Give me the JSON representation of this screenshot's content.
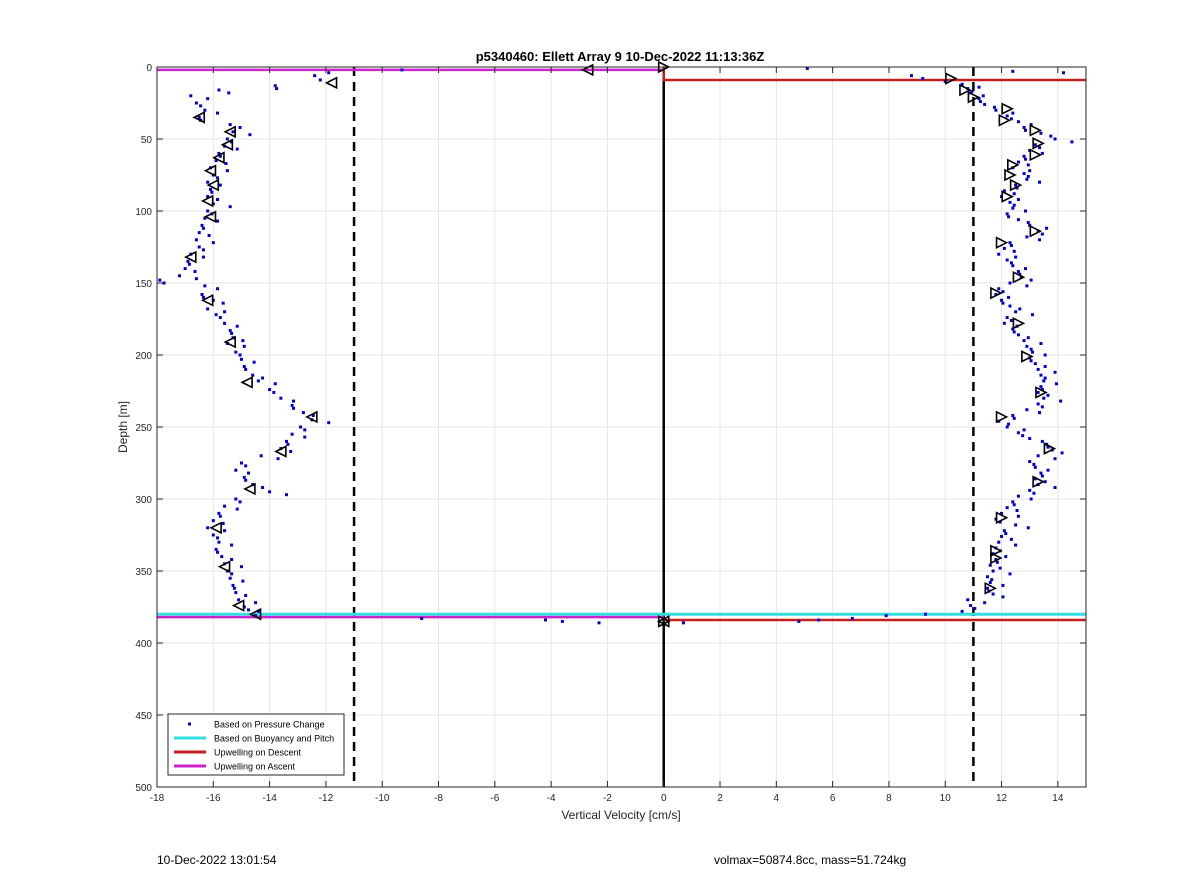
{
  "footer": {
    "timestamp": "10-Dec-2022 13:01:54",
    "info": "volmax=50874.8cc, mass=51.724kg"
  },
  "chart_data": {
    "type": "scatter",
    "title": "p5340460: Ellett Array 9 10-Dec-2022 11:13:36Z",
    "xlabel": "Vertical Velocity [cm/s]",
    "ylabel": "Depth [m]",
    "xlim": [
      -18,
      15
    ],
    "ylim": [
      0,
      500
    ],
    "y_reversed": true,
    "grid": true,
    "xticks": [
      -18,
      -16,
      -14,
      -12,
      -10,
      -8,
      -6,
      -4,
      -2,
      0,
      2,
      4,
      6,
      8,
      10,
      12,
      14
    ],
    "yticks": [
      0,
      50,
      100,
      150,
      200,
      250,
      300,
      350,
      400,
      450,
      500
    ],
    "legend": {
      "placement": "bottom-left",
      "entries": [
        {
          "label": "Based on Pressure Change",
          "color": "#0000cc",
          "style": "dot"
        },
        {
          "label": "Based on Buoyancy and Pitch",
          "color": "#33dde0",
          "style": "line"
        },
        {
          "label": "Upwelling on Descent",
          "color": "#c41e1e",
          "style": "line"
        },
        {
          "label": "Upwelling on Ascent",
          "color": "#cc22cc",
          "style": "line"
        }
      ]
    },
    "colors": {
      "pressure": "#0000cc",
      "buoyancy": "#33dde0",
      "descent": "#c41e1e",
      "ascent": "#cc22cc",
      "reference": "#000000",
      "grid": "#e6e6e6"
    },
    "reference_lines": {
      "zero_x": 0,
      "dashed_x": [
        -11,
        11
      ]
    },
    "series": [
      {
        "name": "Based on Pressure Change",
        "kind": "markers",
        "ascent_profile": [
          [
            2,
            -9.3
          ],
          [
            4,
            -11.9
          ],
          [
            6,
            -12.4
          ],
          [
            9,
            -12.2
          ],
          [
            13,
            -13.8
          ],
          [
            16,
            -15.8
          ],
          [
            20,
            -16.8
          ],
          [
            25,
            -16.6
          ],
          [
            30,
            -16.3
          ],
          [
            35,
            -16.5
          ],
          [
            40,
            -15.4
          ],
          [
            45,
            -15.3
          ],
          [
            50,
            -15.5
          ],
          [
            55,
            -15.6
          ],
          [
            60,
            -15.8
          ],
          [
            65,
            -15.9
          ],
          [
            70,
            -16.1
          ],
          [
            75,
            -16.0
          ],
          [
            80,
            -16.2
          ],
          [
            85,
            -16.1
          ],
          [
            90,
            -16.2
          ],
          [
            95,
            -16.0
          ],
          [
            100,
            -16.2
          ],
          [
            105,
            -16.3
          ],
          [
            110,
            -16.4
          ],
          [
            115,
            -16.5
          ],
          [
            120,
            -16.6
          ],
          [
            125,
            -16.5
          ],
          [
            130,
            -16.8
          ],
          [
            135,
            -16.9
          ],
          [
            140,
            -17.0
          ],
          [
            145,
            -17.2
          ],
          [
            148,
            -17.9
          ],
          [
            152,
            -16.3
          ],
          [
            158,
            -16.4
          ],
          [
            162,
            -16.0
          ],
          [
            168,
            -16.2
          ],
          [
            172,
            -15.9
          ],
          [
            178,
            -15.6
          ],
          [
            183,
            -15.4
          ],
          [
            188,
            -15.3
          ],
          [
            192,
            -15.5
          ],
          [
            198,
            -15.2
          ],
          [
            203,
            -15.0
          ],
          [
            208,
            -14.9
          ],
          [
            214,
            -14.6
          ],
          [
            218,
            -14.4
          ],
          [
            224,
            -14.0
          ],
          [
            230,
            -13.6
          ],
          [
            235,
            -13.2
          ],
          [
            240,
            -12.8
          ],
          [
            245,
            -12.5
          ],
          [
            250,
            -12.9
          ],
          [
            255,
            -13.2
          ],
          [
            260,
            -13.4
          ],
          [
            265,
            -13.6
          ],
          [
            270,
            -14.3
          ],
          [
            275,
            -15.0
          ],
          [
            280,
            -15.2
          ],
          [
            285,
            -14.9
          ],
          [
            290,
            -14.6
          ],
          [
            295,
            -14.0
          ],
          [
            300,
            -15.2
          ],
          [
            305,
            -15.6
          ],
          [
            310,
            -15.8
          ],
          [
            315,
            -16.0
          ],
          [
            320,
            -16.2
          ],
          [
            325,
            -16.0
          ],
          [
            330,
            -15.8
          ],
          [
            335,
            -15.9
          ],
          [
            340,
            -15.7
          ],
          [
            345,
            -15.6
          ],
          [
            350,
            -15.5
          ],
          [
            355,
            -15.4
          ],
          [
            360,
            -15.3
          ],
          [
            365,
            -15.2
          ],
          [
            370,
            -15.1
          ],
          [
            375,
            -14.9
          ],
          [
            378,
            -14.4
          ],
          [
            381,
            -14.5
          ],
          [
            383,
            -8.6
          ],
          [
            384,
            -4.2
          ],
          [
            385,
            -3.6
          ],
          [
            386,
            -2.3
          ]
        ],
        "descent_profile": [
          [
            1,
            5.1
          ],
          [
            3,
            12.4
          ],
          [
            4,
            14.2
          ],
          [
            6,
            8.8
          ],
          [
            8,
            9.2
          ],
          [
            10,
            10.0
          ],
          [
            12,
            10.6
          ],
          [
            15,
            10.8
          ],
          [
            18,
            10.9
          ],
          [
            22,
            11.2
          ],
          [
            26,
            11.4
          ],
          [
            30,
            11.8
          ],
          [
            34,
            12.2
          ],
          [
            38,
            12.6
          ],
          [
            42,
            12.8
          ],
          [
            46,
            13.4
          ],
          [
            50,
            13.9
          ],
          [
            54,
            13.2
          ],
          [
            58,
            13.0
          ],
          [
            62,
            12.8
          ],
          [
            66,
            12.6
          ],
          [
            70,
            12.4
          ],
          [
            74,
            12.8
          ],
          [
            78,
            12.9
          ],
          [
            82,
            12.5
          ],
          [
            86,
            12.1
          ],
          [
            90,
            12.0
          ],
          [
            94,
            12.3
          ],
          [
            98,
            12.4
          ],
          [
            102,
            12.2
          ],
          [
            106,
            12.6
          ],
          [
            110,
            13.0
          ],
          [
            114,
            13.3
          ],
          [
            118,
            12.9
          ],
          [
            122,
            12.3
          ],
          [
            126,
            12.1
          ],
          [
            130,
            11.9
          ],
          [
            134,
            12.2
          ],
          [
            138,
            12.4
          ],
          [
            142,
            12.6
          ],
          [
            146,
            12.7
          ],
          [
            150,
            12.3
          ],
          [
            154,
            11.9
          ],
          [
            158,
            11.8
          ],
          [
            162,
            12.0
          ],
          [
            166,
            12.3
          ],
          [
            170,
            12.5
          ],
          [
            174,
            12.2
          ],
          [
            178,
            12.1
          ],
          [
            182,
            12.4
          ],
          [
            186,
            12.6
          ],
          [
            190,
            12.8
          ],
          [
            194,
            12.9
          ],
          [
            198,
            13.1
          ],
          [
            202,
            13.0
          ],
          [
            206,
            13.2
          ],
          [
            210,
            13.3
          ],
          [
            214,
            13.4
          ],
          [
            218,
            13.5
          ],
          [
            222,
            13.4
          ],
          [
            226,
            13.3
          ],
          [
            230,
            13.5
          ],
          [
            234,
            13.3
          ],
          [
            238,
            12.9
          ],
          [
            242,
            12.4
          ],
          [
            246,
            11.9
          ],
          [
            250,
            12.2
          ],
          [
            254,
            12.6
          ],
          [
            258,
            13.0
          ],
          [
            262,
            13.6
          ],
          [
            266,
            13.8
          ],
          [
            270,
            13.3
          ],
          [
            274,
            13.0
          ],
          [
            278,
            13.2
          ],
          [
            282,
            13.4
          ],
          [
            286,
            13.2
          ],
          [
            290,
            13.3
          ],
          [
            294,
            13.0
          ],
          [
            298,
            12.6
          ],
          [
            302,
            12.4
          ],
          [
            306,
            12.2
          ],
          [
            310,
            12.0
          ],
          [
            314,
            11.8
          ],
          [
            318,
            12.5
          ],
          [
            322,
            12.1
          ],
          [
            326,
            12.0
          ],
          [
            330,
            11.9
          ],
          [
            334,
            11.8
          ],
          [
            338,
            11.7
          ],
          [
            342,
            11.8
          ],
          [
            346,
            11.6
          ],
          [
            350,
            11.7
          ],
          [
            354,
            11.5
          ],
          [
            358,
            11.6
          ],
          [
            362,
            11.5
          ],
          [
            366,
            11.7
          ],
          [
            370,
            10.8
          ],
          [
            374,
            10.9
          ],
          [
            378,
            10.6
          ],
          [
            380,
            9.3
          ],
          [
            381,
            7.9
          ],
          [
            383,
            6.7
          ],
          [
            384,
            5.5
          ],
          [
            385,
            4.8
          ],
          [
            386,
            0.7
          ]
        ]
      },
      {
        "name": "Based on Buoyancy and Pitch",
        "kind": "line",
        "y": 380,
        "x_range": [
          -18,
          15
        ]
      },
      {
        "name": "Upwelling on Descent",
        "kind": "step",
        "points": [
          [
            0,
            0
          ],
          [
            0,
            9
          ],
          [
            15,
            9
          ],
          [
            0,
            384
          ],
          [
            15,
            384
          ]
        ]
      },
      {
        "name": "Upwelling on Ascent",
        "kind": "step",
        "points": [
          [
            -18,
            2
          ],
          [
            0,
            2
          ],
          [
            -18,
            382
          ],
          [
            0,
            382
          ]
        ]
      }
    ],
    "triangle_markers": {
      "ascent": [
        [
          2,
          -2.7
        ],
        [
          11,
          -11.8
        ],
        [
          35,
          -16.5
        ],
        [
          45,
          -15.4
        ],
        [
          54,
          -15.5
        ],
        [
          63,
          -15.8
        ],
        [
          72,
          -16.1
        ],
        [
          82,
          -16.0
        ],
        [
          93,
          -16.2
        ],
        [
          104,
          -16.1
        ],
        [
          132,
          -16.8
        ],
        [
          162,
          -16.2
        ],
        [
          191,
          -15.4
        ],
        [
          219,
          -14.8
        ],
        [
          243,
          -12.5
        ],
        [
          267,
          -13.6
        ],
        [
          293,
          -14.7
        ],
        [
          320,
          -15.9
        ],
        [
          347,
          -15.6
        ],
        [
          374,
          -15.1
        ],
        [
          380,
          -14.5
        ],
        [
          385,
          0
        ]
      ],
      "descent": [
        [
          0,
          0
        ],
        [
          8,
          10.2
        ],
        [
          16,
          10.7
        ],
        [
          21,
          11.0
        ],
        [
          29,
          12.2
        ],
        [
          37,
          12.1
        ],
        [
          44,
          13.2
        ],
        [
          53,
          13.3
        ],
        [
          61,
          13.2
        ],
        [
          68,
          12.4
        ],
        [
          75,
          12.3
        ],
        [
          82,
          12.5
        ],
        [
          90,
          12.2
        ],
        [
          114,
          13.2
        ],
        [
          122,
          12.0
        ],
        [
          146,
          12.6
        ],
        [
          157,
          11.8
        ],
        [
          178,
          12.6
        ],
        [
          201,
          12.9
        ],
        [
          226,
          13.4
        ],
        [
          243,
          12.0
        ],
        [
          265,
          13.7
        ],
        [
          288,
          13.3
        ],
        [
          313,
          12.0
        ],
        [
          336,
          11.8
        ],
        [
          341,
          11.8
        ],
        [
          362,
          11.6
        ],
        [
          385,
          0
        ]
      ]
    }
  }
}
